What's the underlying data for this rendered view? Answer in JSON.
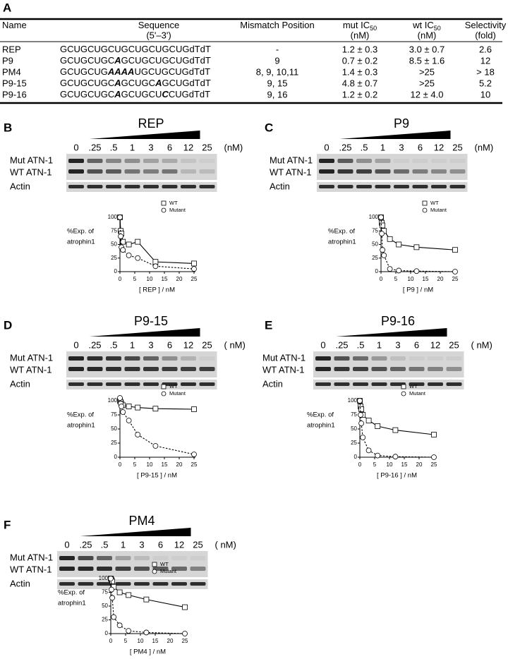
{
  "table": {
    "label": "A",
    "header": [
      {
        "text": "Name"
      },
      {
        "text": "Sequence",
        "unit": "(5'–3')"
      },
      {
        "text": "Mismatch Position"
      },
      {
        "text": "mut IC",
        "sub": "50",
        "unit": "(nM)"
      },
      {
        "text": "wt IC",
        "sub": "50",
        "unit": "(nM)"
      },
      {
        "text": "Selectivity",
        "unit": "(fold)"
      }
    ],
    "rows": [
      {
        "name": "REP",
        "sequence": [
          "GCUGCUGCUGCUGCUGCUGdTdT"
        ],
        "mismatch": "-",
        "mut": "1.2 ± 0.3",
        "wt": "3.0 ± 0.7",
        "selectivity": "2.6"
      },
      {
        "name": "P9",
        "sequence": [
          "GCUGCUGC",
          "A",
          "GCUGCUGCUGdTdT"
        ],
        "mismatch": "9",
        "mut": "0.7 ± 0.2",
        "wt": "8.5 ± 1.6",
        "selectivity": "12"
      },
      {
        "name": "PM4",
        "sequence": [
          "GCUGCUG",
          "AAAA",
          "UGCUGCUGdTdT"
        ],
        "mismatch": "8, 9, 10,11",
        "mut": "1.4 ± 0.3",
        "wt": ">25",
        "selectivity": "> 18"
      },
      {
        "name": "P9-15",
        "sequence": [
          "GCUGCUGC",
          "A",
          "GCUGC",
          "A",
          "GCUGdTdT"
        ],
        "mismatch": "9, 15",
        "mut": "4.8 ± 0.7",
        "wt": ">25",
        "selectivity": "5.2"
      },
      {
        "name": "P9-16",
        "sequence": [
          "GCUGCUGC",
          "A",
          "GCUGCU",
          "C",
          "CUGdTdT"
        ],
        "mismatch": "9, 16",
        "mut": "1.2 ± 0.2",
        "wt": "12 ± 4.0",
        "selectivity": "10"
      }
    ]
  },
  "panels": [
    {
      "label": "B",
      "title": "REP",
      "lanes": [
        "0",
        ".25",
        ".5",
        "1",
        "3",
        "6",
        "12",
        "25"
      ],
      "unit": "(nM)",
      "rows": [
        "Mut ATN-1",
        "WT ATN-1",
        "Actin"
      ],
      "chart": {
        "type": "scatter",
        "ylabel": [
          "%Exp. of",
          "atrophin1"
        ],
        "xlabel": "[ REP ] / nM",
        "x": [
          0,
          0.25,
          0.5,
          1,
          3,
          6,
          12,
          25
        ],
        "xlim": [
          0,
          25
        ],
        "ylim": [
          0,
          100
        ],
        "xticks": [
          0,
          5,
          10,
          15,
          20,
          25
        ],
        "yticks": [
          0,
          25,
          50,
          75,
          100
        ],
        "series": [
          {
            "name": "WT",
            "marker": "square",
            "line": "solid",
            "values": [
              100,
              75,
              70,
              55,
              50,
              55,
              18,
              15
            ]
          },
          {
            "name": "Mutant",
            "marker": "circle",
            "line": "dashed",
            "values": [
              100,
              65,
              45,
              40,
              30,
              25,
              10,
              5
            ]
          }
        ]
      }
    },
    {
      "label": "C",
      "title": "P9",
      "lanes": [
        "0",
        ".25",
        ".5",
        "1",
        "3",
        "6",
        "12",
        "25"
      ],
      "unit": "(nM)",
      "rows": [
        "Mut ATN-1",
        "WT ATN-1",
        "Actin"
      ],
      "chart": {
        "type": "scatter",
        "ylabel": [
          "%Exp. of",
          "atrophin1"
        ],
        "xlabel": "[ P9 ] / nM",
        "x": [
          0,
          0.25,
          0.5,
          1,
          3,
          6,
          12,
          25
        ],
        "xlim": [
          0,
          25
        ],
        "ylim": [
          0,
          100
        ],
        "xticks": [
          0,
          5,
          10,
          15,
          20,
          25
        ],
        "yticks": [
          0,
          25,
          50,
          75,
          100
        ],
        "series": [
          {
            "name": "WT",
            "marker": "square",
            "line": "solid",
            "values": [
              100,
              90,
              85,
              75,
              60,
              50,
              45,
              40
            ]
          },
          {
            "name": "Mutant",
            "marker": "circle",
            "line": "dashed",
            "values": [
              100,
              70,
              40,
              30,
              5,
              2,
              1,
              0
            ]
          }
        ]
      }
    },
    {
      "label": "D",
      "title": "P9-15",
      "lanes": [
        "0",
        ".25",
        ".5",
        "1",
        "3",
        "6",
        "12",
        "25"
      ],
      "unit": "( nM)",
      "rows": [
        "Mut ATN-1",
        "WT ATN-1",
        "Actin"
      ],
      "chart": {
        "type": "scatter",
        "ylabel": [
          "%Exp. of",
          "atrophin1"
        ],
        "xlabel": "[ P9-15 ] / nM",
        "x": [
          0,
          0.25,
          0.5,
          1,
          3,
          6,
          12,
          25
        ],
        "xlim": [
          0,
          25
        ],
        "ylim": [
          0,
          100
        ],
        "xticks": [
          0,
          5,
          10,
          15,
          20,
          25
        ],
        "yticks": [
          0,
          25,
          50,
          75,
          100
        ],
        "series": [
          {
            "name": "WT",
            "marker": "square",
            "line": "solid",
            "values": [
              100,
              98,
              95,
              92,
              90,
              88,
              86,
              85
            ]
          },
          {
            "name": "Mutant",
            "marker": "circle",
            "line": "dashed",
            "values": [
              105,
              95,
              90,
              80,
              65,
              40,
              20,
              5
            ]
          }
        ]
      }
    },
    {
      "label": "E",
      "title": "P9-16",
      "lanes": [
        "0",
        ".25",
        ".5",
        "1",
        "3",
        "6",
        "12",
        "25"
      ],
      "unit": "( nM)",
      "rows": [
        "Mut ATN-1",
        "WT ATN-1",
        "Actin"
      ],
      "chart": {
        "type": "scatter",
        "ylabel": [
          "%Exp. of",
          "atrophin1"
        ],
        "xlabel": "[ P9-16 ] / nM",
        "x": [
          0,
          0.25,
          0.5,
          1,
          3,
          6,
          12,
          25
        ],
        "xlim": [
          0,
          25
        ],
        "ylim": [
          0,
          100
        ],
        "xticks": [
          0,
          5,
          10,
          15,
          20,
          25
        ],
        "yticks": [
          0,
          25,
          50,
          75,
          100
        ],
        "series": [
          {
            "name": "WT",
            "marker": "square",
            "line": "solid",
            "values": [
              100,
              90,
              85,
              75,
              65,
              55,
              48,
              40
            ]
          },
          {
            "name": "Mutant",
            "marker": "circle",
            "line": "dashed",
            "values": [
              100,
              75,
              60,
              35,
              12,
              3,
              1,
              0
            ]
          }
        ]
      }
    },
    {
      "label": "F",
      "title": "PM4",
      "lanes": [
        "0",
        ".25",
        ".5",
        "1",
        "3",
        "6",
        "12",
        "25"
      ],
      "unit": "( nM)",
      "rows": [
        "Mut ATN-1",
        "WT ATN-1",
        "Actin"
      ],
      "chart": {
        "type": "scatter",
        "ylabel": [
          "%Exp. of",
          "atrophin1"
        ],
        "xlabel": "[ PM4 ] / nM",
        "x": [
          0,
          0.25,
          0.5,
          1,
          3,
          6,
          12,
          25
        ],
        "xlim": [
          0,
          25
        ],
        "ylim": [
          0,
          100
        ],
        "xticks": [
          0,
          5,
          10,
          15,
          20,
          25
        ],
        "yticks": [
          0,
          25,
          50,
          75,
          100
        ],
        "series": [
          {
            "name": "WT",
            "marker": "square",
            "line": "solid",
            "values": [
              100,
              98,
              95,
              85,
              75,
              70,
              62,
              48
            ]
          },
          {
            "name": "Mutant",
            "marker": "circle",
            "line": "dashed",
            "values": [
              100,
              80,
              65,
              30,
              15,
              5,
              2,
              0
            ]
          }
        ]
      }
    }
  ]
}
